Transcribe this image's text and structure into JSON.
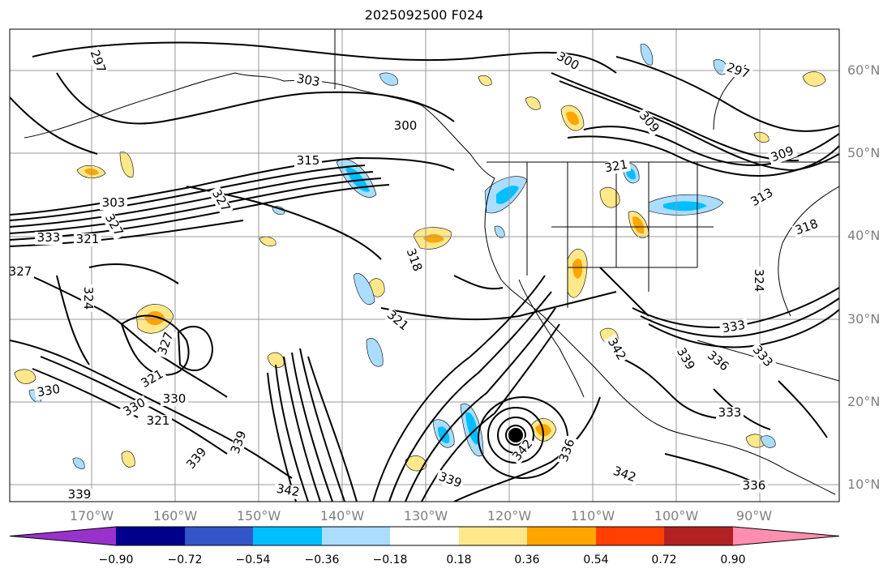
{
  "title": "2025092500 F024",
  "lat_labels": [
    "60°N",
    "50°N",
    "40°N",
    "30°N",
    "20°N",
    "10°N"
  ],
  "lon_labels": [
    "170°W",
    "160°W",
    "150°W",
    "140°W",
    "130°W",
    "120°W",
    "110°W",
    "100°W",
    "90°W"
  ],
  "colorbar": {
    "ticks": [
      "−0.90",
      "−0.72",
      "−0.54",
      "−0.36",
      "−0.18",
      "0.18",
      "0.36",
      "0.54",
      "0.72",
      "0.90"
    ],
    "colors": [
      "#9932cc",
      "#00008b",
      "#3356c8",
      "#00bfff",
      "#aaddff",
      "#ffffff",
      "#ffe88a",
      "#ffa500",
      "#ff4000",
      "#b22222",
      "#ff8fb0"
    ]
  },
  "contour_labels": [
    {
      "text": "303"
    },
    {
      "text": "300"
    },
    {
      "text": "297"
    },
    {
      "text": "300"
    },
    {
      "text": "297"
    },
    {
      "text": "315"
    },
    {
      "text": "327"
    },
    {
      "text": "303"
    },
    {
      "text": "327"
    },
    {
      "text": "333"
    },
    {
      "text": "321"
    },
    {
      "text": "327"
    },
    {
      "text": "318"
    },
    {
      "text": "324"
    },
    {
      "text": "321"
    },
    {
      "text": "327"
    },
    {
      "text": "321"
    },
    {
      "text": "330"
    },
    {
      "text": "330"
    },
    {
      "text": "330"
    },
    {
      "text": "321"
    },
    {
      "text": "339"
    },
    {
      "text": "339"
    },
    {
      "text": "339"
    },
    {
      "text": "342"
    },
    {
      "text": "339"
    },
    {
      "text": "342"
    },
    {
      "text": "336"
    },
    {
      "text": "342"
    },
    {
      "text": "339"
    },
    {
      "text": "336"
    },
    {
      "text": "333"
    },
    {
      "text": "333"
    },
    {
      "text": "336"
    },
    {
      "text": "342"
    },
    {
      "text": "321"
    },
    {
      "text": "309"
    },
    {
      "text": "309"
    },
    {
      "text": "313"
    },
    {
      "text": "318"
    },
    {
      "text": "324"
    },
    {
      "text": "333"
    }
  ],
  "marker": {
    "type": "storm-center"
  }
}
